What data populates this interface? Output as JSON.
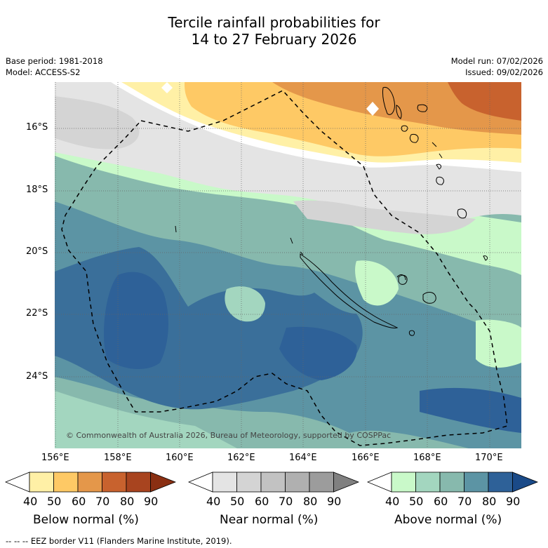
{
  "title": {
    "line1": "Tercile rainfall probabilities for",
    "line2": "14 to 27 February 2026"
  },
  "info": {
    "base_period": "Base period: 1981-2018",
    "model": "Model: ACCESS-S2",
    "model_run": "Model run: 07/02/2026",
    "issued": "Issued: 09/02/2026"
  },
  "axes": {
    "lat_labels": [
      "16°S",
      "18°S",
      "20°S",
      "22°S",
      "24°S"
    ],
    "lon_labels": [
      "156°E",
      "158°E",
      "160°E",
      "162°E",
      "164°E",
      "166°E",
      "168°E",
      "170°E"
    ]
  },
  "map": {
    "copyright": "© Commonwealth of Australia 2026, Bureau of Meteorology, supported by COSPPac",
    "regions": [
      "New Caledonia",
      "Vanuatu",
      "EEZ border"
    ]
  },
  "colorbars": [
    {
      "title": "Below normal (%)",
      "ticks": [
        "40",
        "50",
        "60",
        "70",
        "80",
        "90"
      ],
      "colors": [
        "#ffffff",
        "#fff0a6",
        "#fec965",
        "#e4974a",
        "#c8622e",
        "#a8441f",
        "#8a2f12"
      ]
    },
    {
      "title": "Near normal (%)",
      "ticks": [
        "40",
        "50",
        "60",
        "70",
        "80",
        "90"
      ],
      "colors": [
        "#ffffff",
        "#e4e4e4",
        "#d4d4d4",
        "#c2c2c2",
        "#b0b0b0",
        "#9c9c9c",
        "#808080"
      ]
    },
    {
      "title": "Above normal (%)",
      "ticks": [
        "40",
        "50",
        "60",
        "70",
        "80",
        "90"
      ],
      "colors": [
        "#ffffff",
        "#c9f9c9",
        "#a3d6bf",
        "#87b9ad",
        "#5c94a4",
        "#2e6198",
        "#1a4a88"
      ]
    }
  ],
  "legend": {
    "eez_note": "--  --  -- EEZ border V11 (Flanders Marine Institute, 2019)."
  }
}
